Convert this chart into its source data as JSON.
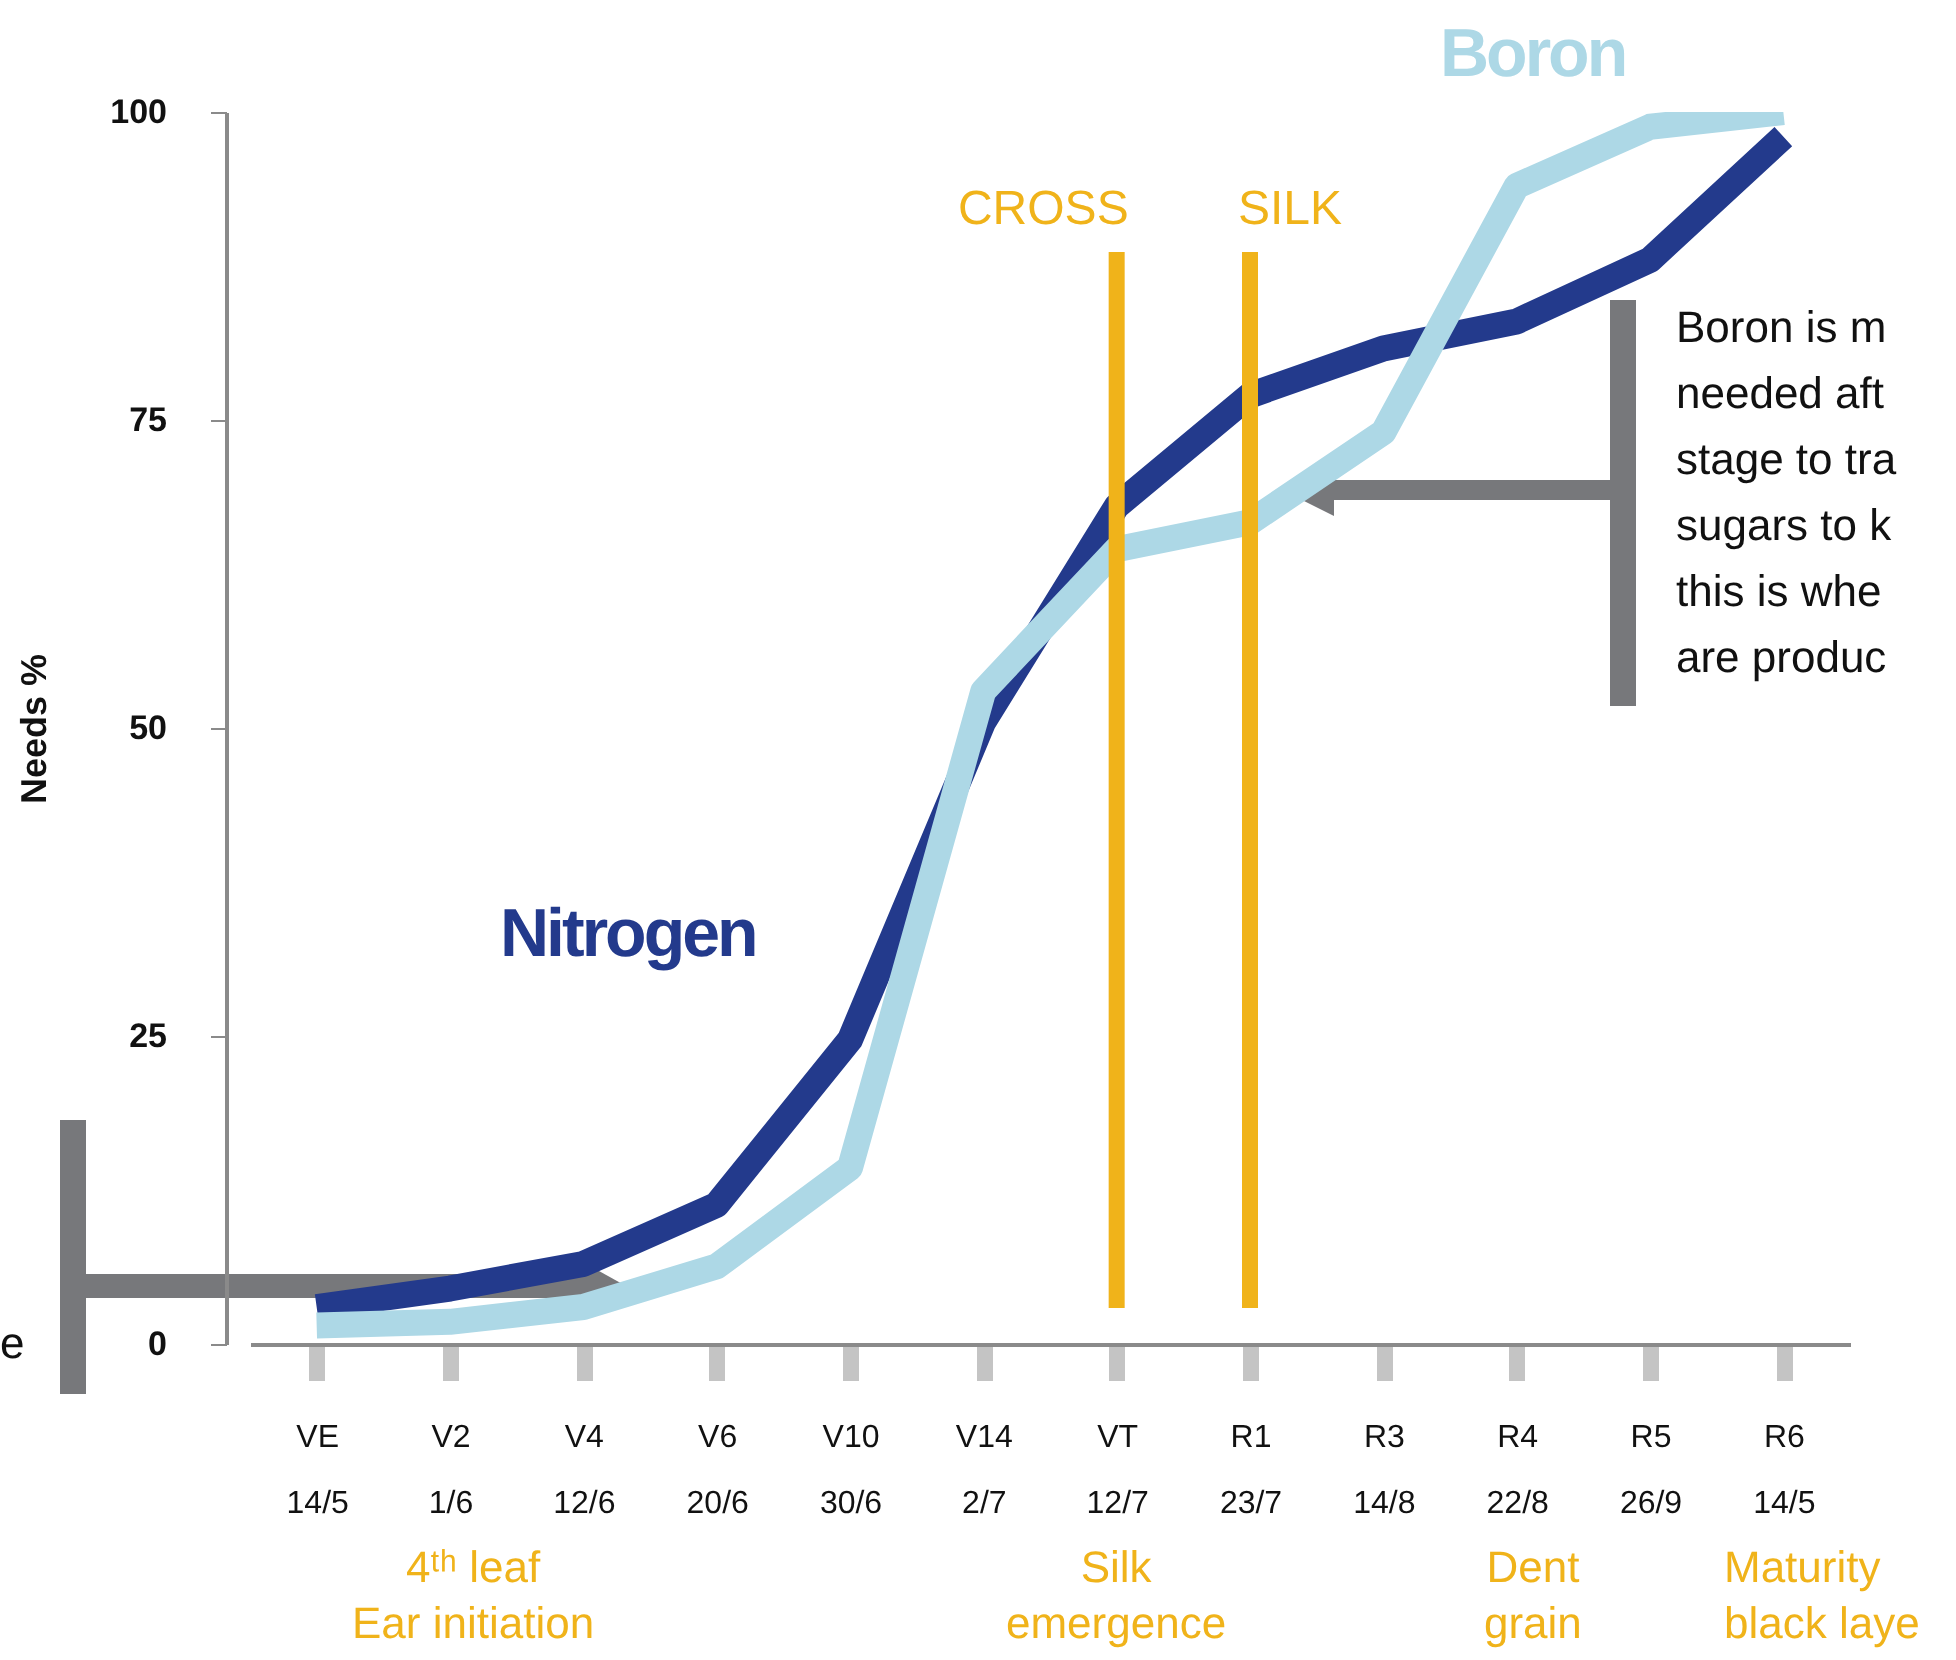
{
  "chart_data": {
    "type": "line",
    "ylabel": "Needs %",
    "categories": [
      "VE\n14/5",
      "V2\n1/6",
      "V4\n12/6",
      "V6\n20/6",
      "V10\n30/6",
      "V14\n2/7",
      "VT\n12/7",
      "R1\n23/7",
      "R3\n14/8",
      "R4\n22/8",
      "R5\n26/9",
      "R6\n14/5"
    ],
    "ylim": [
      0,
      100
    ],
    "yticks": [
      0,
      25,
      50,
      75,
      100
    ],
    "grid": false,
    "legend": false,
    "series": [
      {
        "name": "Nitrogen",
        "color": "#233a8c",
        "values": [
          3,
          4.5,
          6.5,
          11.3,
          24.7,
          50.5,
          68,
          77,
          80.8,
          83,
          88,
          98
        ]
      },
      {
        "name": "Boron",
        "color": "#add8e6",
        "values": [
          1.5,
          1.8,
          3,
          6.3,
          14.3,
          53,
          64.5,
          66.7,
          74,
          94,
          98.8,
          100
        ]
      }
    ],
    "ref_lines": [
      {
        "axis": "x",
        "value": "VT\n12/7",
        "label": "CROSS",
        "color": "#f0b31a"
      },
      {
        "axis": "x",
        "value": "R1\n23/7",
        "label": "SILK",
        "color": "#f0b31a"
      }
    ],
    "annotations": [
      "4ᵗʰ leaf\nEar initiation",
      "Silk\nemergence",
      "Dent\ngrain",
      "Maturity\nblack laye",
      "Boron is m\nneeded aft\nstage to tra\nsugars to k\nthis is whe\nare produc",
      "e"
    ]
  }
}
